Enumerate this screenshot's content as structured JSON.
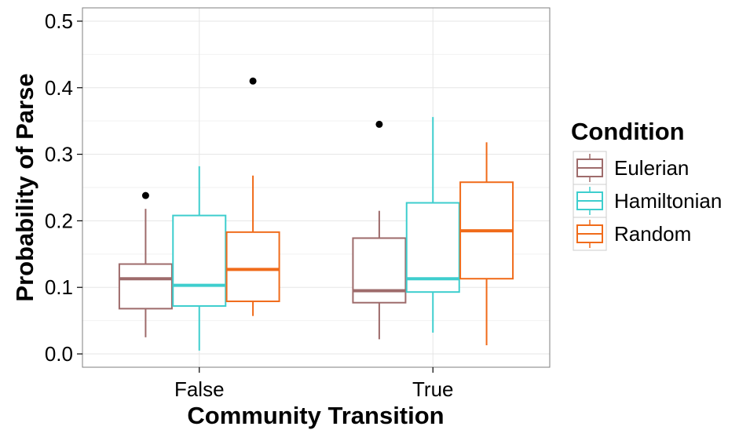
{
  "chart_data": {
    "type": "box",
    "xlabel": "Community Transition",
    "ylabel": "Probability of Parse",
    "categories": [
      "False",
      "True"
    ],
    "ylim": [
      -0.02,
      0.52
    ],
    "yticks": [
      0.0,
      0.1,
      0.2,
      0.3,
      0.4,
      0.5
    ],
    "ytick_labels": [
      "0.0",
      "0.1",
      "0.2",
      "0.3",
      "0.4",
      "0.5"
    ],
    "grid": true,
    "legend": {
      "title": "Condition",
      "position": "right",
      "entries": [
        "Eulerian",
        "Hamiltonian",
        "Random"
      ]
    },
    "series": [
      {
        "name": "Eulerian",
        "color": "#9e6b6b",
        "boxes": [
          {
            "category": "False",
            "whisker_low": 0.025,
            "q1": 0.068,
            "median": 0.113,
            "q3": 0.135,
            "whisker_high": 0.218,
            "outliers": [
              0.238
            ]
          },
          {
            "category": "True",
            "whisker_low": 0.022,
            "q1": 0.077,
            "median": 0.095,
            "q3": 0.174,
            "whisker_high": 0.215,
            "outliers": [
              0.345
            ]
          }
        ]
      },
      {
        "name": "Hamiltonian",
        "color": "#3ecece",
        "boxes": [
          {
            "category": "False",
            "whisker_low": 0.005,
            "q1": 0.072,
            "median": 0.103,
            "q3": 0.208,
            "whisker_high": 0.282,
            "outliers": []
          },
          {
            "category": "True",
            "whisker_low": 0.032,
            "q1": 0.093,
            "median": 0.113,
            "q3": 0.227,
            "whisker_high": 0.356,
            "outliers": []
          }
        ]
      },
      {
        "name": "Random",
        "color": "#f06b1a",
        "boxes": [
          {
            "category": "False",
            "whisker_low": 0.057,
            "q1": 0.079,
            "median": 0.127,
            "q3": 0.183,
            "whisker_high": 0.268,
            "outliers": [
              0.41
            ]
          },
          {
            "category": "True",
            "whisker_low": 0.013,
            "q1": 0.113,
            "median": 0.185,
            "q3": 0.258,
            "whisker_high": 0.318,
            "outliers": []
          }
        ]
      }
    ]
  }
}
